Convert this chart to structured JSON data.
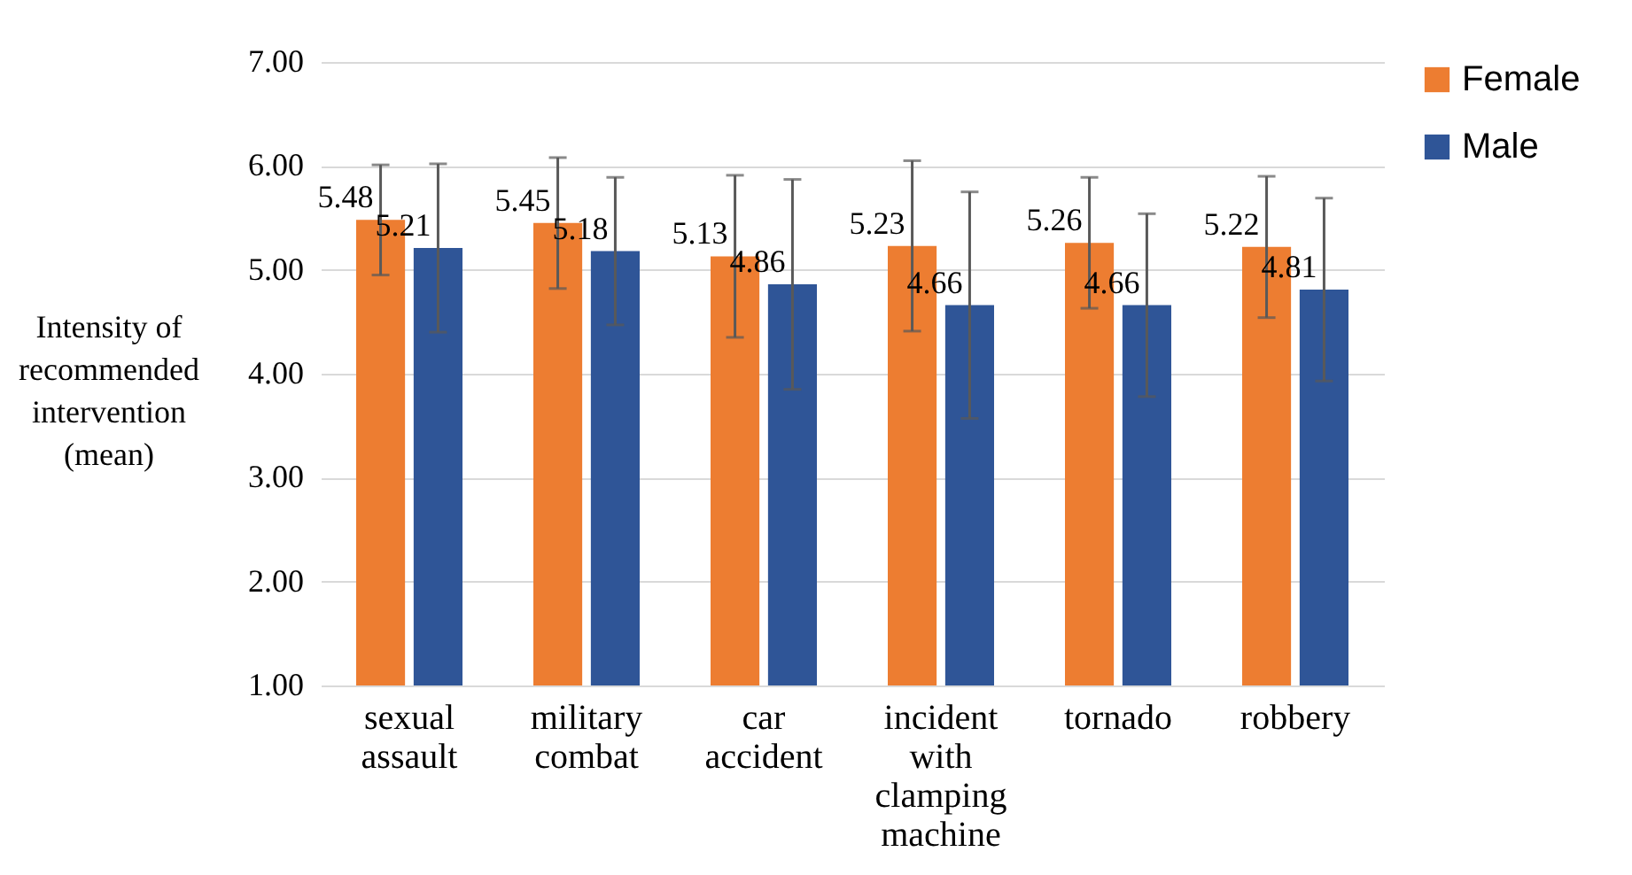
{
  "chart_data": {
    "type": "bar",
    "ylabel": "Intensity of recommended intervention (mean)",
    "categories": [
      "sexual assault",
      "military combat",
      "car accident",
      "incident with clamping machine",
      "tornado",
      "robbery"
    ],
    "series": [
      {
        "name": "Female",
        "color": "#ed7d31",
        "values": [
          5.48,
          5.45,
          5.13,
          5.23,
          5.26,
          5.22
        ],
        "errors": [
          0.53,
          0.63,
          0.78,
          0.82,
          0.63,
          0.68
        ]
      },
      {
        "name": "Male",
        "color": "#2f5597",
        "values": [
          5.21,
          5.18,
          4.86,
          4.66,
          4.66,
          4.81
        ],
        "errors": [
          0.81,
          0.71,
          1.01,
          1.09,
          0.88,
          0.88
        ]
      }
    ],
    "ylim": [
      1,
      7
    ],
    "yticks": [
      {
        "value": 1,
        "label": "1.00"
      },
      {
        "value": 2,
        "label": "2.00"
      },
      {
        "value": 3,
        "label": "3.00"
      },
      {
        "value": 4,
        "label": "4.00"
      },
      {
        "value": 5,
        "label": "5.00"
      },
      {
        "value": 6,
        "label": "6.00"
      },
      {
        "value": 7,
        "label": "7.00"
      }
    ],
    "grid": "y",
    "legend": "top right",
    "data_labels": true
  }
}
